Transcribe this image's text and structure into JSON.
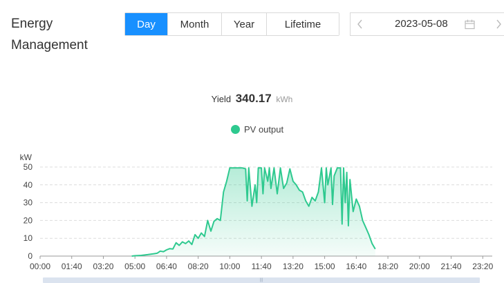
{
  "header": {
    "title": "Energy Management"
  },
  "period_tabs": [
    {
      "label": "Day",
      "active": true
    },
    {
      "label": "Month",
      "active": false
    },
    {
      "label": "Year",
      "active": false
    },
    {
      "label": "Lifetime",
      "active": false
    }
  ],
  "date_picker": {
    "value": "2023-05-08",
    "prev_icon": "chevron-left-icon",
    "next_icon": "chevron-right-icon",
    "calendar_icon": "calendar-icon"
  },
  "summary": {
    "label": "Yield",
    "value": "340.17",
    "unit": "kWh"
  },
  "colors": {
    "accent": "#1890ff",
    "series": "#2ec98f"
  },
  "chart_data": {
    "type": "area",
    "title": "",
    "xlabel": "",
    "ylabel": "kW",
    "ylim": [
      0,
      50
    ],
    "yticks": [
      0,
      10,
      20,
      30,
      40,
      50
    ],
    "xlim": [
      "00:00",
      "23:50"
    ],
    "xticks": [
      "00:00",
      "01:40",
      "03:20",
      "05:00",
      "06:40",
      "08:20",
      "10:00",
      "11:40",
      "13:20",
      "15:00",
      "16:40",
      "18:20",
      "20:00",
      "21:40",
      "23:20"
    ],
    "grid": true,
    "legend": "top",
    "series": [
      {
        "name": "PV output",
        "color": "#2ec98f",
        "points": [
          [
            "04:50",
            0
          ],
          [
            "05:00",
            0.2
          ],
          [
            "05:20",
            0.4
          ],
          [
            "05:40",
            0.8
          ],
          [
            "06:00",
            1.3
          ],
          [
            "06:10",
            1.6
          ],
          [
            "06:20",
            2.8
          ],
          [
            "06:30",
            2.5
          ],
          [
            "06:40",
            3.5
          ],
          [
            "06:50",
            4.2
          ],
          [
            "07:00",
            4.0
          ],
          [
            "07:10",
            7.5
          ],
          [
            "07:20",
            6.0
          ],
          [
            "07:30",
            8.0
          ],
          [
            "07:40",
            7.0
          ],
          [
            "07:50",
            8.5
          ],
          [
            "08:00",
            6.5
          ],
          [
            "08:10",
            12.0
          ],
          [
            "08:20",
            10.0
          ],
          [
            "08:30",
            13.0
          ],
          [
            "08:40",
            11.0
          ],
          [
            "08:50",
            20.0
          ],
          [
            "09:00",
            14.0
          ],
          [
            "09:10",
            19.5
          ],
          [
            "09:20",
            21.0
          ],
          [
            "09:30",
            20.0
          ],
          [
            "09:40",
            36.0
          ],
          [
            "09:50",
            42.0
          ],
          [
            "10:00",
            49.5
          ],
          [
            "10:20",
            49.5
          ],
          [
            "10:40",
            49.5
          ],
          [
            "10:50",
            49.0
          ],
          [
            "10:55",
            31.0
          ],
          [
            "11:00",
            49.5
          ],
          [
            "11:10",
            28.0
          ],
          [
            "11:20",
            40.0
          ],
          [
            "11:25",
            30.0
          ],
          [
            "11:30",
            49.5
          ],
          [
            "11:40",
            49.5
          ],
          [
            "11:45",
            35.0
          ],
          [
            "11:50",
            49.5
          ],
          [
            "12:00",
            42.0
          ],
          [
            "12:05",
            49.5
          ],
          [
            "12:10",
            38.0
          ],
          [
            "12:20",
            49.5
          ],
          [
            "12:30",
            35.0
          ],
          [
            "12:40",
            49.5
          ],
          [
            "12:50",
            38.0
          ],
          [
            "13:00",
            41.0
          ],
          [
            "13:10",
            49.0
          ],
          [
            "13:20",
            42.0
          ],
          [
            "13:30",
            40.0
          ],
          [
            "13:40",
            37.0
          ],
          [
            "13:50",
            36.0
          ],
          [
            "14:00",
            31.0
          ],
          [
            "14:10",
            28.0
          ],
          [
            "14:20",
            33.0
          ],
          [
            "14:30",
            31.0
          ],
          [
            "14:40",
            36.0
          ],
          [
            "14:50",
            49.5
          ],
          [
            "15:00",
            30.0
          ],
          [
            "15:05",
            49.5
          ],
          [
            "15:10",
            40.0
          ],
          [
            "15:20",
            49.5
          ],
          [
            "15:25",
            29.0
          ],
          [
            "15:30",
            45.0
          ],
          [
            "15:40",
            49.5
          ],
          [
            "15:50",
            49.5
          ],
          [
            "15:55",
            18.0
          ],
          [
            "16:00",
            49.5
          ],
          [
            "16:05",
            30.0
          ],
          [
            "16:10",
            47.0
          ],
          [
            "16:15",
            17.0
          ],
          [
            "16:20",
            43.0
          ],
          [
            "16:30",
            25.0
          ],
          [
            "16:40",
            32.0
          ],
          [
            "16:50",
            28.0
          ],
          [
            "17:00",
            20.0
          ],
          [
            "17:10",
            16.0
          ],
          [
            "17:20",
            12.0
          ],
          [
            "17:30",
            7.0
          ],
          [
            "17:40",
            4.0
          ]
        ]
      }
    ]
  }
}
